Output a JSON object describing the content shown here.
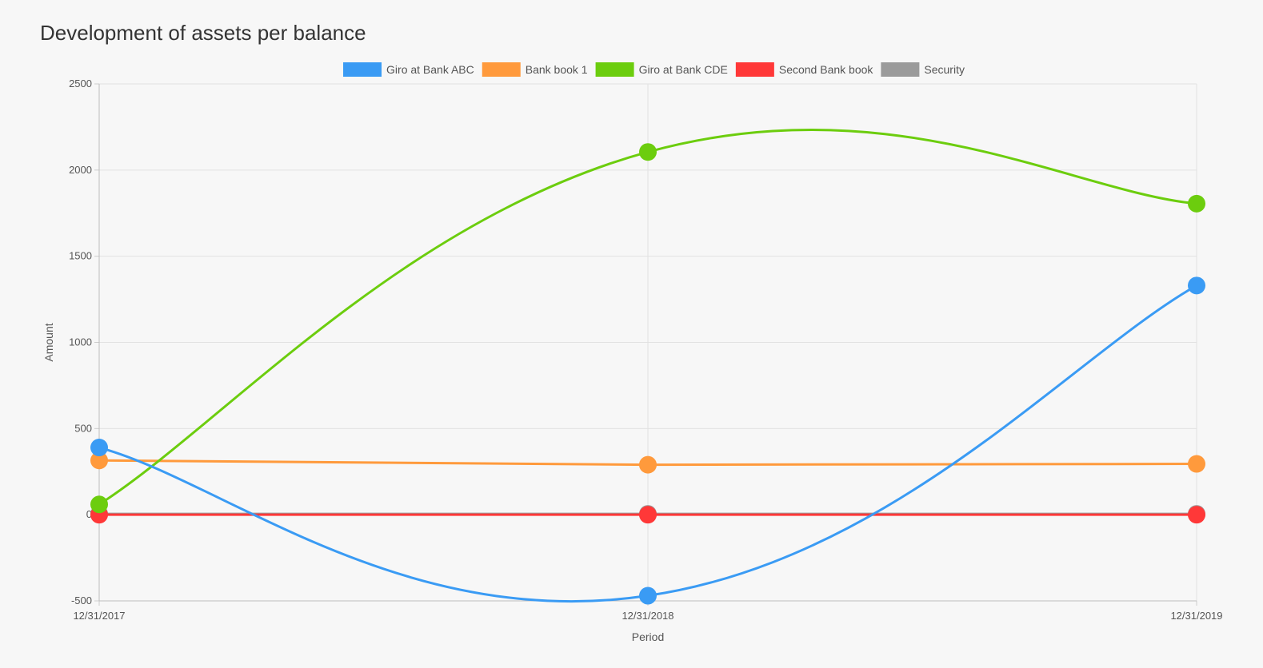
{
  "chart_data": {
    "type": "line",
    "title": "Development of assets per balance",
    "xlabel": "Period",
    "ylabel": "Amount",
    "categories": [
      "12/31/2017",
      "12/31/2018",
      "12/31/2019"
    ],
    "ylim": [
      -500,
      2500
    ],
    "yticks": [
      -500,
      0,
      500,
      1000,
      1500,
      2000,
      2500
    ],
    "grid": true,
    "legend_position": "top-center",
    "smooth": true,
    "series": [
      {
        "name": "Giro at Bank ABC",
        "color": "#3a9bf4",
        "values": [
          390,
          -470,
          1330
        ]
      },
      {
        "name": "Bank book 1",
        "color": "#ff9a3c",
        "values": [
          315,
          290,
          295
        ]
      },
      {
        "name": "Giro at Bank CDE",
        "color": "#6ccd0e",
        "values": [
          60,
          2105,
          1805
        ]
      },
      {
        "name": "Second Bank book",
        "color": "#ff3838",
        "values": [
          0,
          0,
          0
        ]
      },
      {
        "name": "Security",
        "color": "#9b9b9b",
        "values": [
          5,
          5,
          5
        ]
      }
    ]
  }
}
